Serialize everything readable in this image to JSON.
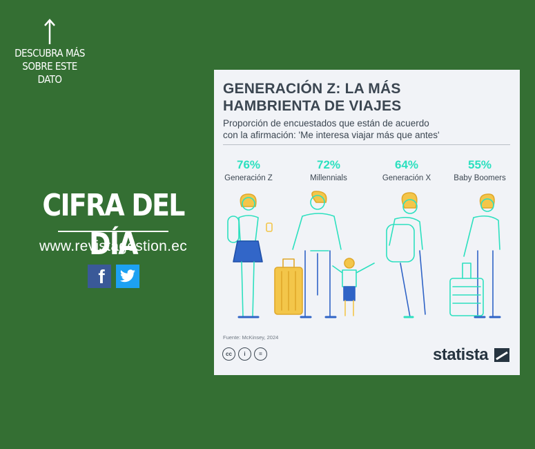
{
  "sidebar": {
    "cta": "DESCUBRA MÁS SOBRE ESTE DATO",
    "headline": "CIFRA DEL DÍA",
    "website": "www.revistagestion.ec",
    "social": [
      {
        "name": "facebook",
        "icon": "facebook-icon",
        "color": "#3a5998"
      },
      {
        "name": "twitter",
        "icon": "twitter-icon",
        "color": "#1da1f2"
      }
    ]
  },
  "colors": {
    "background": "#346f33",
    "card": "#f1f3f7",
    "accent": "#2ce0bf",
    "text": "#3b4651"
  },
  "infographic": {
    "title_line1": "GENERACIÓN Z: LA MÁS",
    "title_line2": "HAMBRIENTA DE VIAJES",
    "subtitle_line1": "Proporción de encuestados que están de acuerdo",
    "subtitle_line2": "con la afirmación: 'Me interesa viajar más que antes'",
    "source": "Fuente: McKinsey, 2024",
    "license_icons": [
      "cc-icon",
      "by-icon",
      "nd-icon"
    ],
    "license_labels": [
      "cc",
      "i",
      "="
    ],
    "brand": "statista"
  },
  "chart_data": {
    "type": "table",
    "title": "GENERACIÓN Z: LA MÁS HAMBRIENTA DE VIAJES",
    "unit": "%",
    "categories": [
      "Generación Z",
      "Millennials",
      "Generación X",
      "Baby Boomers"
    ],
    "values": [
      76,
      72,
      64,
      55
    ],
    "value_labels": [
      "76%",
      "72%",
      "64%",
      "55%"
    ]
  }
}
